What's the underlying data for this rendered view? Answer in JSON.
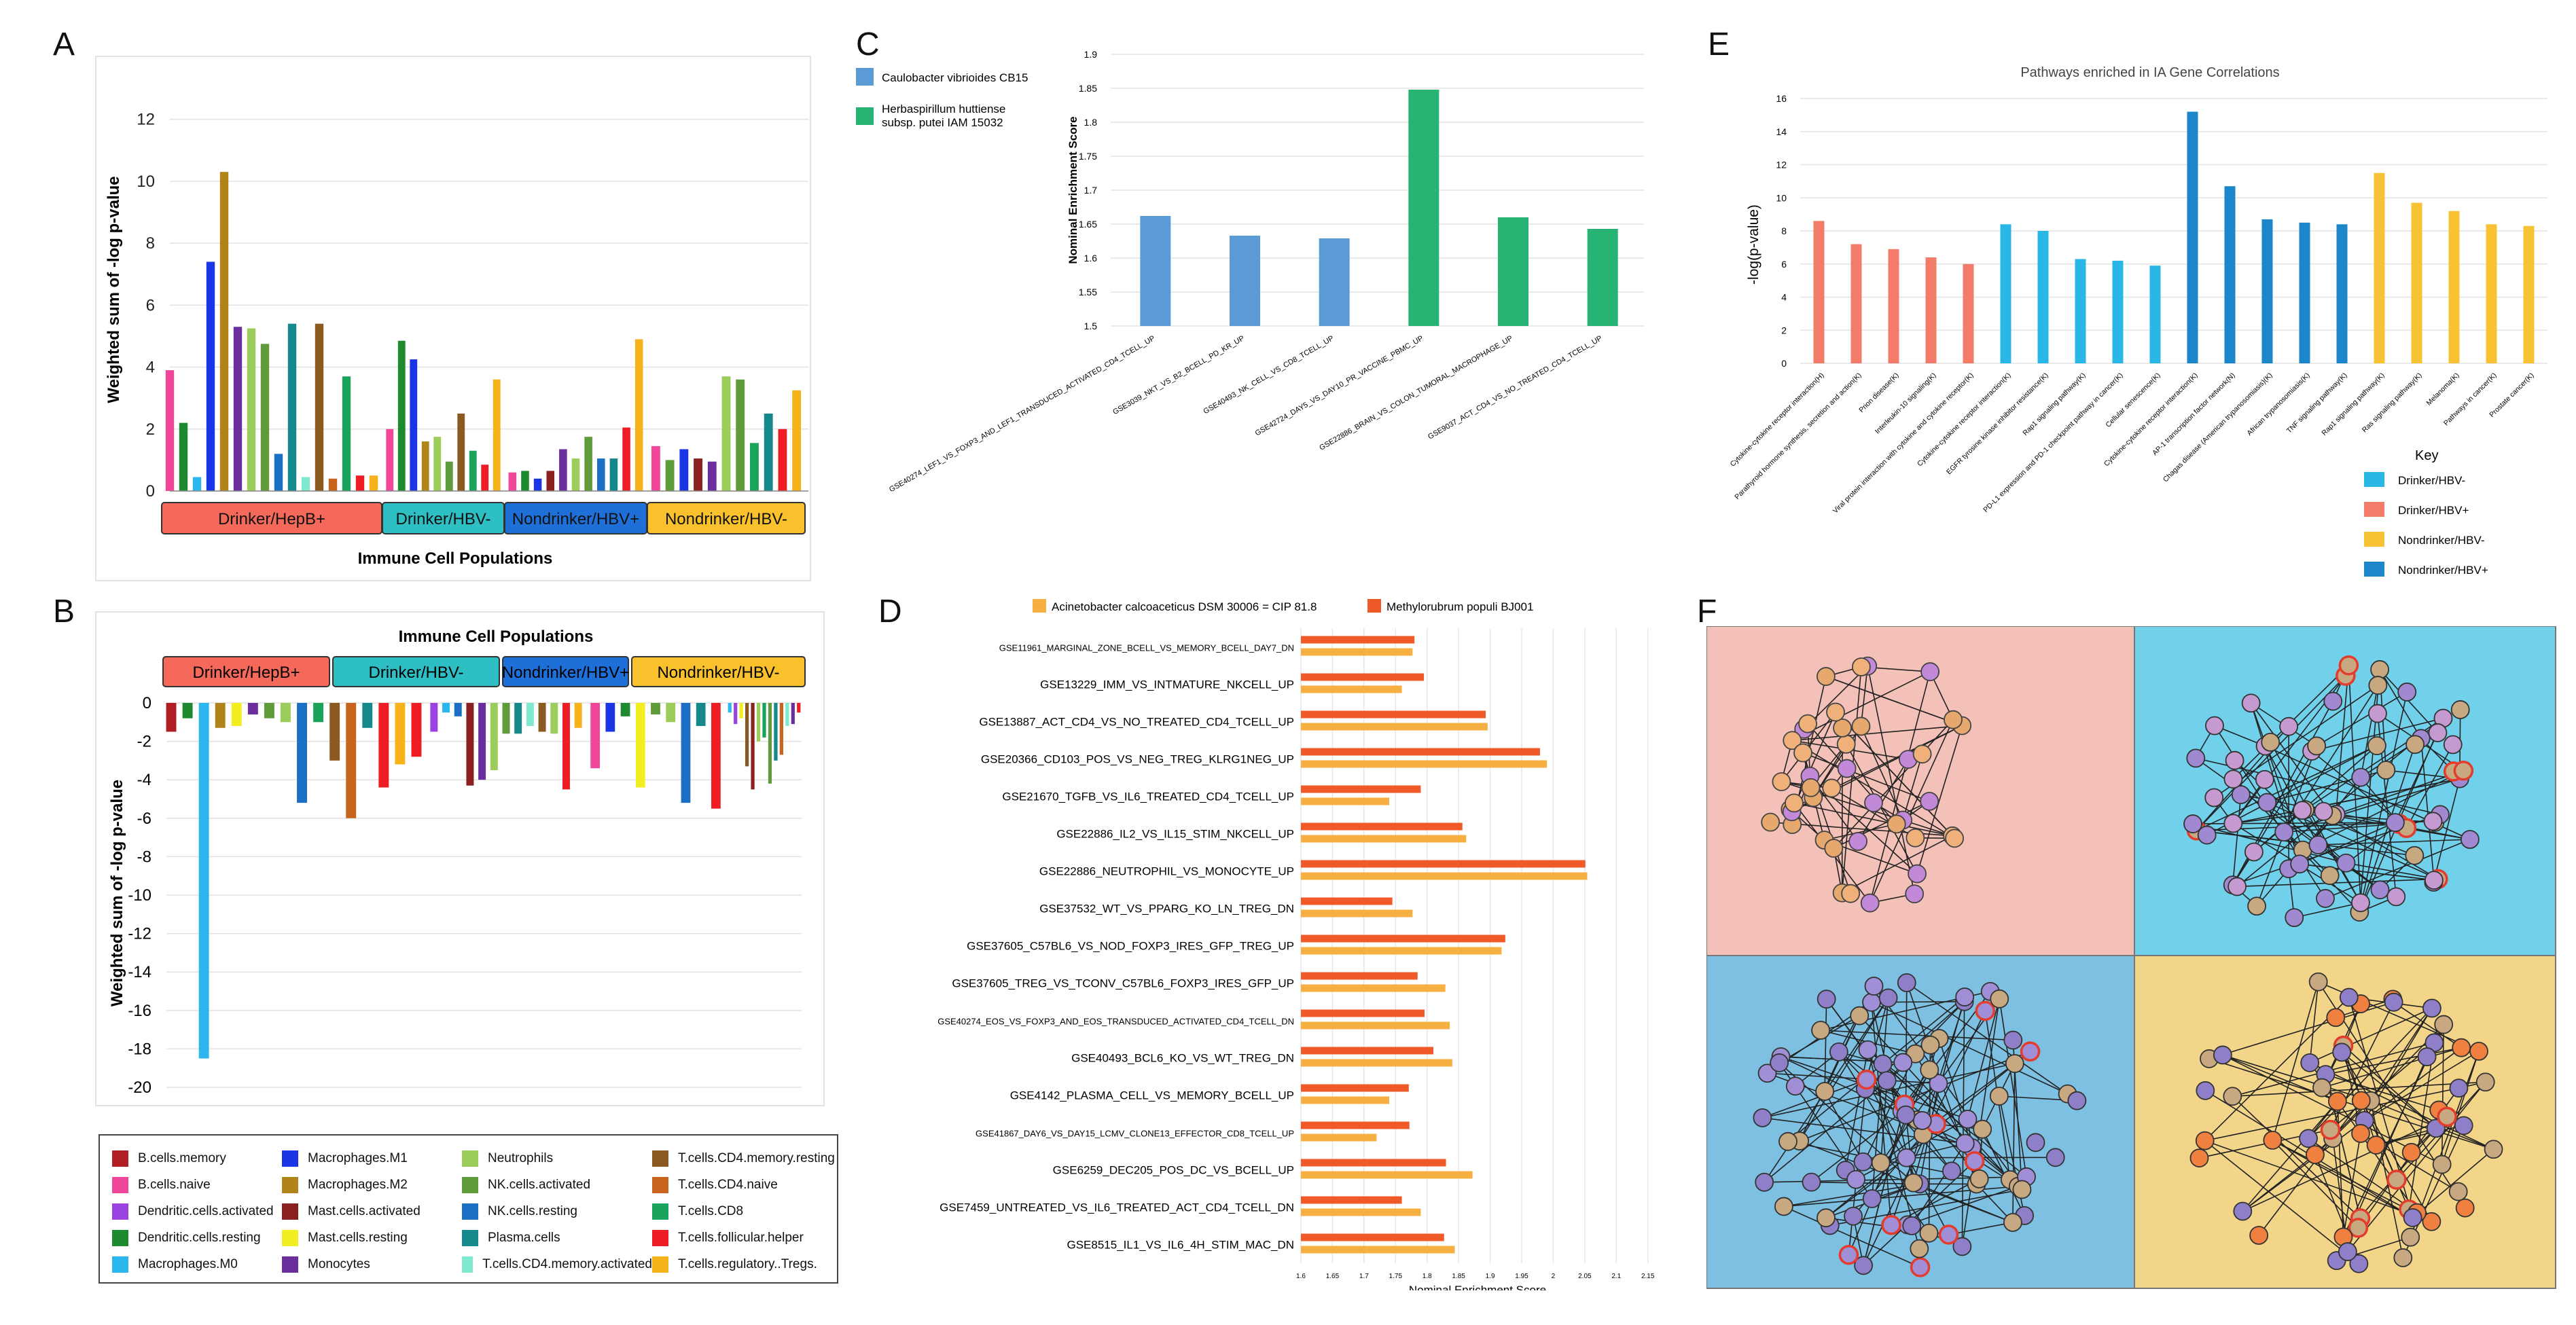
{
  "panels": {
    "a": "A",
    "b": "B",
    "c": "C",
    "d": "D",
    "e": "E",
    "f": "F"
  },
  "legend_colors": {
    "B.cells.memory": "#b01e23",
    "B.cells.naive": "#f0479a",
    "Dendritic.cells.activated": "#9b43e0",
    "Dendritic.cells.resting": "#1e8a30",
    "Macrophages.M0": "#2bb6ee",
    "Macrophages.M1": "#1a35e6",
    "Macrophages.M2": "#b08418",
    "Mast.cells.activated": "#8a2020",
    "Mast.cells.resting": "#f2ee20",
    "Monocytes": "#6b2e9e",
    "Neutrophils": "#9ccc5a",
    "NK.cells.activated": "#5f9a3b",
    "NK.cells.resting": "#1b6fc4",
    "Plasma.cells": "#14888a",
    "T.cells.CD4.memory.activated": "#7fe9cf",
    "T.cells.CD4.memory.resting": "#8b5a20",
    "T.cells.CD4.naive": "#c8641d",
    "T.cells.CD8": "#1aa35a",
    "T.cells.follicular.helper": "#ee1c24",
    "T.cells.regulatory..Tregs.": "#f5b21a"
  },
  "legend_order": [
    "B.cells.memory",
    "Macrophages.M1",
    "Neutrophils",
    "T.cells.CD4.memory.resting",
    "B.cells.naive",
    "Macrophages.M2",
    "NK.cells.activated",
    "T.cells.CD4.naive",
    "Dendritic.cells.activated",
    "Mast.cells.activated",
    "NK.cells.resting",
    "T.cells.CD8",
    "Dendritic.cells.resting",
    "Mast.cells.resting",
    "Plasma.cells",
    "T.cells.follicular.helper",
    "Macrophages.M0",
    "Monocytes",
    "T.cells.CD4.memory.activated",
    "T.cells.regulatory..Tregs."
  ],
  "chart_data": [
    {
      "id": "A",
      "type": "bar",
      "xlabel": "Immune Cell Populations",
      "ylabel": "Weighted sum of -log p-value",
      "ylim": [
        0,
        13
      ],
      "yticks": [
        0,
        2,
        4,
        6,
        8,
        10,
        12
      ],
      "groups": [
        {
          "name": "Drinker/HepB+",
          "color": "#f4695a",
          "bars": [
            [
              "B.cells.naive",
              3.9
            ],
            [
              "Dendritic.cells.resting",
              2.2
            ],
            [
              "Macrophages.M0",
              0.45
            ],
            [
              "Macrophages.M1",
              7.4
            ],
            [
              "Macrophages.M2",
              10.3
            ],
            [
              "Monocytes",
              5.3
            ],
            [
              "Neutrophils",
              5.25
            ],
            [
              "NK.cells.activated",
              4.75
            ],
            [
              "NK.cells.resting",
              1.2
            ],
            [
              "Plasma.cells",
              5.4
            ],
            [
              "T.cells.CD4.memory.activated",
              0.45
            ],
            [
              "T.cells.CD4.memory.resting",
              5.4
            ],
            [
              "T.cells.CD4.naive",
              0.4
            ],
            [
              "T.cells.CD8",
              3.7
            ],
            [
              "T.cells.follicular.helper",
              0.5
            ],
            [
              "T.cells.regulatory..Tregs.",
              0.5
            ]
          ]
        },
        {
          "name": "Drinker/HBV-",
          "color": "#2dbfc4",
          "bars": [
            [
              "B.cells.naive",
              2.0
            ],
            [
              "Dendritic.cells.resting",
              4.85
            ],
            [
              "Macrophages.M1",
              4.25
            ],
            [
              "Macrophages.M2",
              1.6
            ],
            [
              "Neutrophils",
              1.75
            ],
            [
              "NK.cells.activated",
              0.95
            ],
            [
              "T.cells.CD4.memory.resting",
              2.5
            ],
            [
              "T.cells.CD8",
              1.3
            ],
            [
              "T.cells.follicular.helper",
              0.85
            ],
            [
              "T.cells.regulatory..Tregs.",
              3.6
            ]
          ]
        },
        {
          "name": "Nondrinker/HBV+",
          "color": "#1f6fd8",
          "bars": [
            [
              "B.cells.naive",
              0.6
            ],
            [
              "Dendritic.cells.resting",
              0.65
            ],
            [
              "Macrophages.M1",
              0.4
            ],
            [
              "Mast.cells.activated",
              0.65
            ],
            [
              "Monocytes",
              1.35
            ],
            [
              "Neutrophils",
              1.05
            ],
            [
              "NK.cells.activated",
              1.75
            ],
            [
              "NK.cells.resting",
              1.05
            ],
            [
              "Plasma.cells",
              1.05
            ],
            [
              "T.cells.follicular.helper",
              2.05
            ],
            [
              "T.cells.regulatory..Tregs.",
              4.9
            ]
          ]
        },
        {
          "name": "Nondrinker/HBV-",
          "color": "#f9c22c",
          "bars": [
            [
              "B.cells.naive",
              1.45
            ],
            [
              "NK.cells.activated",
              1.0
            ],
            [
              "Macrophages.M1",
              1.35
            ],
            [
              "Mast.cells.activated",
              1.05
            ],
            [
              "Monocytes",
              0.95
            ],
            [
              "Neutrophils",
              3.7
            ],
            [
              "NK.cells.activated",
              3.6
            ],
            [
              "T.cells.CD8",
              1.55
            ],
            [
              "Plasma.cells",
              2.5
            ],
            [
              "T.cells.follicular.helper",
              2.0
            ],
            [
              "T.cells.regulatory..Tregs.",
              3.25
            ]
          ]
        }
      ]
    },
    {
      "id": "B",
      "type": "bar",
      "title": "Immune Cell Populations",
      "ylabel": "Weighted sum of -log p-value",
      "ylim": [
        -20,
        0
      ],
      "yticks": [
        0,
        -2,
        -4,
        -6,
        -8,
        -10,
        -12,
        -14,
        -16,
        -18,
        -20
      ],
      "groups": [
        {
          "name": "Drinker/HepB+",
          "color": "#f4695a",
          "bars": [
            [
              "B.cells.memory",
              -1.5
            ],
            [
              "Dendritic.cells.resting",
              -0.8
            ],
            [
              "Macrophages.M0",
              -18.5
            ],
            [
              "Macrophages.M2",
              -1.3
            ],
            [
              "Mast.cells.resting",
              -1.2
            ],
            [
              "Monocytes",
              -0.6
            ],
            [
              "NK.cells.activated",
              -0.8
            ],
            [
              "Neutrophils",
              -1.0
            ],
            [
              "NK.cells.resting",
              -5.2
            ],
            [
              "T.cells.CD8",
              -1.0
            ],
            [
              "T.cells.CD4.memory.resting",
              -3.0
            ],
            [
              "T.cells.CD4.naive",
              -6.0
            ],
            [
              "Plasma.cells",
              -1.3
            ],
            [
              "T.cells.follicular.helper",
              -4.4
            ],
            [
              "T.cells.regulatory..Tregs.",
              -3.2
            ],
            [
              "T.cells.follicular.helper",
              -2.8
            ]
          ]
        },
        {
          "name": "Drinker/HBV-",
          "color": "#2dbfc4",
          "bars": [
            [
              "Dendritic.cells.activated",
              -1.5
            ],
            [
              "Macrophages.M0",
              -0.5
            ],
            [
              "NK.cells.resting",
              -0.7
            ],
            [
              "Mast.cells.activated",
              -4.3
            ],
            [
              "Monocytes",
              -4.0
            ],
            [
              "Neutrophils",
              -3.5
            ],
            [
              "NK.cells.activated",
              -1.6
            ],
            [
              "Plasma.cells",
              -1.6
            ],
            [
              "T.cells.CD4.memory.activated",
              -1.2
            ],
            [
              "T.cells.CD4.memory.resting",
              -1.5
            ],
            [
              "Neutrophils",
              -1.6
            ],
            [
              "T.cells.follicular.helper",
              -4.5
            ],
            [
              "T.cells.regulatory..Tregs.",
              -1.3
            ]
          ]
        },
        {
          "name": "Nondrinker/HBV+",
          "color": "#1f6fd8",
          "bars": [
            [
              "B.cells.naive",
              -3.4
            ],
            [
              "Macrophages.M1",
              -1.5
            ],
            [
              "Dendritic.cells.resting",
              -0.7
            ],
            [
              "Mast.cells.resting",
              -4.4
            ],
            [
              "NK.cells.activated",
              -0.6
            ],
            [
              "Neutrophils",
              -1.0
            ],
            [
              "NK.cells.resting",
              -5.2
            ],
            [
              "Plasma.cells",
              -1.2
            ],
            [
              "T.cells.follicular.helper",
              -5.5
            ]
          ]
        },
        {
          "name": "Nondrinker/HBV-",
          "color": "#f9c22c",
          "bars": [
            [
              "Macrophages.M0",
              -0.5
            ],
            [
              "Dendritic.cells.activated",
              -1.1
            ],
            [
              "Mast.cells.resting",
              -0.8
            ],
            [
              "T.cells.CD4.memory.resting",
              -3.3
            ],
            [
              "Mast.cells.activated",
              -4.5
            ],
            [
              "Neutrophils",
              -2.0
            ],
            [
              "T.cells.CD8",
              -1.8
            ],
            [
              "NK.cells.activated",
              -4.2
            ],
            [
              "Plasma.cells",
              -3.0
            ],
            [
              "T.cells.CD4.naive",
              -2.7
            ],
            [
              "T.cells.CD4.memory.activated",
              -1.2
            ],
            [
              "Monocytes",
              -1.1
            ],
            [
              "T.cells.follicular.helper",
              -0.5
            ]
          ]
        }
      ]
    },
    {
      "id": "C",
      "type": "bar",
      "ylabel": "Nominal Enrichment Score",
      "ylim": [
        1.5,
        1.9
      ],
      "yticks": [
        1.5,
        1.55,
        1.6,
        1.65,
        1.7,
        1.75,
        1.8,
        1.85,
        1.9
      ],
      "series": [
        {
          "name": "Caulobacter vibrioides CB15",
          "color": "#5b9bd5"
        },
        {
          "name": "Herbaspirillum huttiense subsp. putei IAM 15032",
          "color": "#27b374"
        }
      ],
      "categories": [
        "GSE40274_LEF1_VS_FOXP3_AND_LEF1_TRANSDUCED_ACTIVATED_CD4_TCELL_UP",
        "GSE3039_NKT_VS_B2_BCELL_PD_KR_UP",
        "GSE40493_NK_CELL_VS_CD8_TCELL_UP",
        "GSE42724_DAY5_VS_DAY10_PR_VACCINE_PBMC_UP",
        "GSE22886_BRAIN_VS_COLON_TUMORAL_MACROPHAGE_UP",
        "GSE9037_ACT_CD4_VS_NO_TREATED_CD4_TCELL_UP"
      ],
      "values": [
        1.662,
        1.633,
        1.629,
        1.848,
        1.66,
        1.643
      ],
      "series_index": [
        0,
        0,
        0,
        1,
        1,
        1
      ]
    },
    {
      "id": "D",
      "type": "bar",
      "xlabel": "Nominal Enrichment Score",
      "xlim": [
        1.6,
        2.16
      ],
      "xticks": [
        1.6,
        1.65,
        1.7,
        1.75,
        1.8,
        1.85,
        1.9,
        1.95,
        2.0,
        2.05,
        2.1,
        2.15
      ],
      "series": [
        {
          "name": "Acinetobacter calcoaceticus DSM 30006 = CIP 81.8",
          "color": "#f5b041",
          "values": [
            1.777,
            1.76,
            1.896,
            1.99,
            1.74,
            1.862,
            2.054,
            1.777,
            1.918,
            1.829,
            1.836,
            1.84,
            1.74,
            1.72,
            1.872,
            1.79,
            1.844
          ]
        },
        {
          "name": "Methylorubrum populi BJ001",
          "color": "#f05a28",
          "values": [
            1.78,
            1.795,
            1.893,
            1.979,
            1.79,
            1.856,
            2.051,
            1.745,
            1.924,
            1.785,
            1.796,
            1.81,
            1.771,
            1.772,
            1.83,
            1.76,
            1.827
          ]
        }
      ],
      "categories": [
        "GSE11961_MARGINAL_ZONE_BCELL_VS_MEMORY_BCELL_DAY7_DN",
        "GSE13229_IMM_VS_INTMATURE_NKCELL_UP",
        "GSE13887_ACT_CD4_VS_NO_TREATED_CD4_TCELL_UP",
        "GSE20366_CD103_POS_VS_NEG_TREG_KLRG1NEG_UP",
        "GSE21670_TGFB_VS_IL6_TREATED_CD4_TCELL_UP",
        "GSE22886_IL2_VS_IL15_STIM_NKCELL_UP",
        "GSE22886_NEUTROPHIL_VS_MONOCYTE_UP",
        "GSE37532_WT_VS_PPARG_KO_LN_TREG_DN",
        "GSE37605_C57BL6_VS_NOD_FOXP3_IRES_GFP_TREG_UP",
        "GSE37605_TREG_VS_TCONV_C57BL6_FOXP3_IRES_GFP_UP",
        "GSE40274_EOS_VS_FOXP3_AND_EOS_TRANSDUCED_ACTIVATED_CD4_TCELL_DN",
        "GSE40493_BCL6_KO_VS_WT_TREG_DN",
        "GSE4142_PLASMA_CELL_VS_MEMORY_BCELL_UP",
        "GSE41867_DAY6_VS_DAY15_LCMV_CLONE13_EFFECTOR_CD8_TCELL_UP",
        "GSE6259_DEC205_POS_DC_VS_BCELL_UP",
        "GSE7459_UNTREATED_VS_IL6_TREATED_ACT_CD4_TCELL_DN",
        "GSE8515_IL1_VS_IL6_4H_STIM_MAC_DN"
      ]
    },
    {
      "id": "E",
      "type": "bar",
      "title": "Pathways enriched in IA Gene Correlations",
      "ylabel": "-log(p-value)",
      "ylim": [
        0,
        16
      ],
      "yticks": [
        0,
        2,
        4,
        6,
        8,
        10,
        12,
        14,
        16
      ],
      "legend_title": "Key",
      "series": [
        {
          "name": "Drinker/HBV-",
          "color": "#29b8e6"
        },
        {
          "name": "Drinker/HBV+",
          "color": "#f27b6a"
        },
        {
          "name": "Nondrinker/HBV-",
          "color": "#f7c233"
        },
        {
          "name": "Nondrinker/HBV+",
          "color": "#1b86c9"
        }
      ],
      "categories": [
        "Cytokine-cytokine receptor interaction(H)",
        "Parathyroid hormone synthesis, secretion and action(K)",
        "Prion disease(K)",
        "Interleukin-10 signaling(K)",
        "Viral protein interaction with cytokine and cytokine receptor(K)",
        "Cytokine-cytokine receptor interaction(K)",
        "EGFR tyrosine kinase inhibitor resistance(K)",
        "Rap1 signaling pathway(K)",
        "PD-L1 expression and PD-1 checkpoint pathway in cancer(K)",
        "Cellular senescence(K)",
        "Cytokine-cytokine receptor interaction(K)",
        "AP-1 transcription factor network(N)",
        "Chagas disease (American trypanosomiasis)(K)",
        "African trypanosomiasis(K)",
        "TNF signaling pathway(K)",
        "Rap1 signaling pathway(K)",
        "Ras signaling pathway(K)",
        "Melanoma(K)",
        "Pathways in cancer(K)",
        "Prostate cancer(K)"
      ],
      "values": [
        8.6,
        7.2,
        6.9,
        6.4,
        6.0,
        8.4,
        8.0,
        6.3,
        6.2,
        5.9,
        15.2,
        10.7,
        8.7,
        8.5,
        8.4,
        11.5,
        9.7,
        9.2,
        8.4,
        8.3
      ],
      "series_index": [
        1,
        1,
        1,
        1,
        1,
        0,
        0,
        0,
        0,
        0,
        3,
        3,
        3,
        3,
        3,
        2,
        2,
        2,
        2,
        2
      ]
    }
  ]
}
